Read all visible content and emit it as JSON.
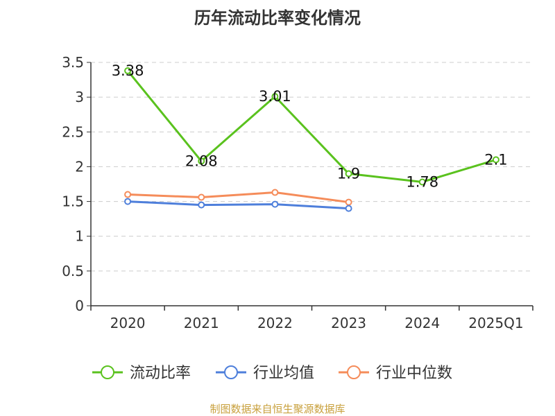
{
  "chart_data": {
    "type": "line",
    "title": "历年流动比率变化情况",
    "categories": [
      "2020",
      "2021",
      "2022",
      "2023",
      "2024",
      "2025Q1"
    ],
    "ylim": [
      0,
      3.5
    ],
    "yticks": [
      "0",
      "0.5",
      "1",
      "1.5",
      "2",
      "2.5",
      "3",
      "3.5"
    ],
    "grid": true,
    "legend_position": "bottom",
    "series": [
      {
        "name": "流动比率",
        "color": "#5ac21e",
        "values": [
          3.38,
          2.08,
          3.01,
          1.9,
          1.78,
          2.1
        ],
        "labels": [
          "3.38",
          "2.08",
          "3.01",
          "1.9",
          "1.78",
          "2.1"
        ]
      },
      {
        "name": "行业均值",
        "color": "#4e7fdb",
        "values": [
          1.5,
          1.45,
          1.46,
          1.4,
          null,
          null
        ]
      },
      {
        "name": "行业中位数",
        "color": "#f58c5a",
        "values": [
          1.6,
          1.56,
          1.63,
          1.49,
          null,
          null
        ]
      }
    ]
  },
  "source": "制图数据来自恒生聚源数据库"
}
